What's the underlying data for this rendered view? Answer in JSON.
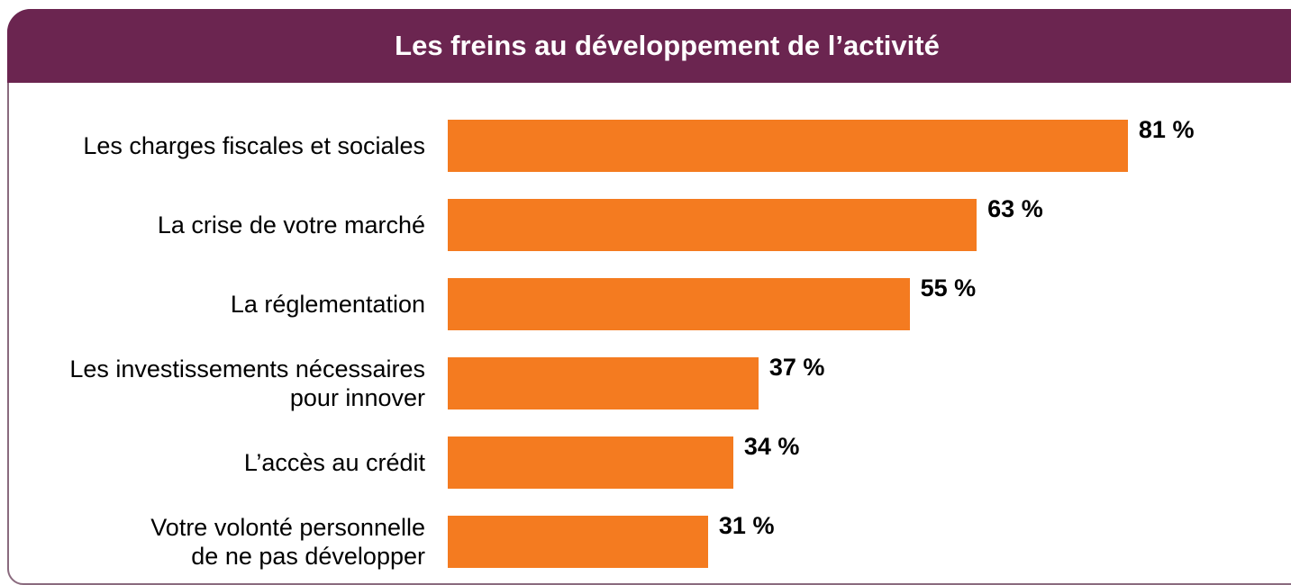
{
  "chart_data": {
    "type": "bar",
    "orientation": "horizontal",
    "title": "Les freins au développement de l’activité",
    "categories": [
      "Les charges fiscales et sociales",
      "La crise de votre marché",
      "La réglementation",
      "Les investissements nécessaires\npour innover",
      "L’accès au crédit",
      "Votre volonté personnelle\nde ne pas développer"
    ],
    "values": [
      81,
      63,
      55,
      37,
      34,
      31
    ],
    "value_labels": [
      "81 %",
      "63 %",
      "55 %",
      "37 %",
      "34 %",
      "31 %"
    ],
    "color": "#f47b20",
    "xlim": [
      0,
      100
    ]
  }
}
